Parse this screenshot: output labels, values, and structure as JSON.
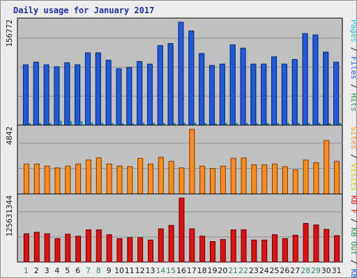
{
  "title": "Daily usage for January 2017",
  "chart_data": [
    {
      "type": "bar",
      "panel": "top",
      "ytick_label": "156772",
      "legend": [
        {
          "label": "Hits",
          "color": "#2e8b57"
        },
        {
          "label": "Files",
          "color": "#1e5adc"
        },
        {
          "label": "Pages",
          "color": "#25c4d2"
        }
      ],
      "categories": [
        "1",
        "2",
        "3",
        "4",
        "5",
        "6",
        "7",
        "8",
        "9",
        "10",
        "11",
        "12",
        "13",
        "14",
        "15",
        "16",
        "17",
        "18",
        "19",
        "20",
        "21",
        "22",
        "23",
        "24",
        "25",
        "26",
        "27",
        "28",
        "29",
        "30",
        "31"
      ],
      "series": [
        {
          "name": "Hits",
          "values": [
            91000,
            95000,
            91000,
            88000,
            94000,
            91000,
            109000,
            109000,
            98000,
            85000,
            87000,
            96000,
            92000,
            120000,
            123000,
            155000,
            142000,
            108000,
            90000,
            92000,
            121000,
            116000,
            92000,
            92000,
            103000,
            92000,
            99000,
            138000,
            136000,
            110000,
            95000
          ]
        },
        {
          "name": "Files",
          "values": [
            89000,
            93000,
            89000,
            86000,
            92000,
            89000,
            107000,
            107000,
            96000,
            83000,
            85000,
            94000,
            90000,
            118000,
            121000,
            152000,
            139000,
            106000,
            88000,
            90000,
            119000,
            114000,
            90000,
            90000,
            101000,
            90000,
            97000,
            135000,
            133000,
            108000,
            93000
          ]
        },
        {
          "name": "Pages",
          "values": [
            2500,
            2500,
            2500,
            5500,
            5000,
            5000,
            3500,
            3000,
            2500,
            2000,
            2000,
            3000,
            3000,
            2500,
            2500,
            2500,
            3000,
            2500,
            2000,
            2500,
            2500,
            2500,
            2000,
            2500,
            2500,
            2500,
            2500,
            2500,
            3000,
            2500,
            2500
          ]
        }
      ]
    },
    {
      "type": "bar",
      "panel": "middle",
      "ytick_label": "4842",
      "legend": [
        {
          "label": "Visits",
          "color": "#c8c800"
        },
        {
          "label": "Sites",
          "color": "#ff8c1a"
        }
      ],
      "categories": [
        "1",
        "2",
        "3",
        "4",
        "5",
        "6",
        "7",
        "8",
        "9",
        "10",
        "11",
        "12",
        "13",
        "14",
        "15",
        "16",
        "17",
        "18",
        "19",
        "20",
        "21",
        "22",
        "23",
        "24",
        "25",
        "26",
        "27",
        "28",
        "29",
        "30",
        "31"
      ],
      "series": [
        {
          "name": "Visits",
          "values": [
            0,
            0,
            0,
            0,
            0,
            0,
            0,
            0,
            0,
            0,
            0,
            0,
            0,
            0,
            0,
            0,
            0,
            0,
            0,
            0,
            0,
            0,
            0,
            0,
            0,
            0,
            0,
            0,
            0,
            0,
            0
          ]
        },
        {
          "name": "Sites",
          "values": [
            2180,
            2180,
            2030,
            1900,
            2030,
            2180,
            2480,
            2630,
            2180,
            2030,
            1990,
            2600,
            2180,
            2680,
            2380,
            1900,
            4720,
            2030,
            1860,
            2030,
            2600,
            2630,
            2130,
            2130,
            2180,
            1990,
            1760,
            2480,
            2280,
            3900,
            2380
          ]
        }
      ]
    },
    {
      "type": "bar",
      "panel": "bottom",
      "ytick_label": "125631344",
      "legend": [
        {
          "label": "KB In",
          "color": "#1e5adc"
        },
        {
          "label": "KB Out",
          "color": "#2e8b57"
        },
        {
          "label": "KB F",
          "color": "#e01010"
        }
      ],
      "categories": [
        "1",
        "2",
        "3",
        "4",
        "5",
        "6",
        "7",
        "8",
        "9",
        "10",
        "11",
        "12",
        "13",
        "14",
        "15",
        "16",
        "17",
        "18",
        "19",
        "20",
        "21",
        "22",
        "23",
        "24",
        "25",
        "26",
        "27",
        "28",
        "29",
        "30",
        "31"
      ],
      "series": [
        {
          "name": "KB In",
          "values": [
            0,
            0,
            0,
            0,
            0,
            0,
            0,
            0,
            0,
            0,
            0,
            0,
            0,
            0,
            0,
            0,
            0,
            0,
            0,
            0,
            0,
            0,
            0,
            0,
            0,
            0,
            0,
            0,
            0,
            0,
            0
          ]
        },
        {
          "name": "KB Out",
          "values": [
            0,
            0,
            0,
            0,
            0,
            0,
            0,
            0,
            0,
            0,
            0,
            0,
            0,
            0,
            0,
            0,
            0,
            0,
            0,
            0,
            0,
            0,
            0,
            0,
            0,
            0,
            0,
            0,
            0,
            0,
            0
          ]
        },
        {
          "name": "KB F",
          "values": [
            58000000,
            61000000,
            58000000,
            48000000,
            57000000,
            53000000,
            66000000,
            66000000,
            56000000,
            48000000,
            50000000,
            50000000,
            45000000,
            68000000,
            75000000,
            131000000,
            68000000,
            53000000,
            42000000,
            46000000,
            66000000,
            66000000,
            45000000,
            45000000,
            56000000,
            48000000,
            55000000,
            79000000,
            76000000,
            67000000,
            54000000
          ]
        }
      ]
    }
  ],
  "day_labels": [
    "1",
    "2",
    "3",
    "4",
    "5",
    "6",
    "7",
    "8",
    "9",
    "10",
    "11",
    "12",
    "13",
    "14",
    "15",
    "16",
    "17",
    "18",
    "19",
    "20",
    "21",
    "22",
    "23",
    "24",
    "25",
    "26",
    "27",
    "28",
    "29",
    "30",
    "31"
  ],
  "weekend_days": [
    1,
    7,
    8,
    14,
    15,
    21,
    22,
    28,
    29
  ],
  "colors": {
    "weekend": "#2e8b57",
    "weekday": "#1a1a1a",
    "plot_bg": "#c0c0c0",
    "title": "#1f2fa8"
  }
}
